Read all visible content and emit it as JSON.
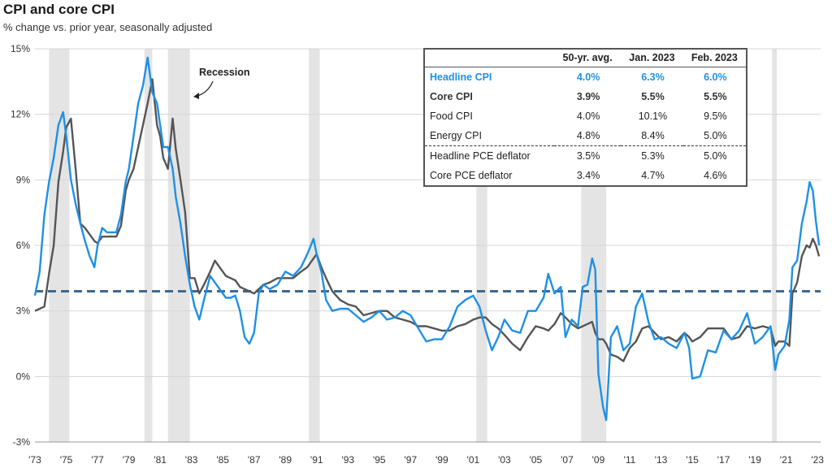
{
  "title": "CPI and core CPI",
  "subtitle": "% change vs. prior year, seasonally adjusted",
  "annotation": "Recession",
  "colors": {
    "headline": "#1e90e6",
    "core": "#555555",
    "avg_line": "#3d6a8f",
    "recession": "#e4e4e4"
  },
  "table": {
    "headers": [
      "",
      "50-yr. avg.",
      "Jan. 2023",
      "Feb. 2023"
    ],
    "rows": [
      {
        "label": "Headline CPI",
        "avg": "4.0%",
        "jan": "6.3%",
        "feb": "6.0%"
      },
      {
        "label": "Core CPI",
        "avg": "3.9%",
        "jan": "5.5%",
        "feb": "5.5%"
      },
      {
        "label": "Food CPI",
        "avg": "4.0%",
        "jan": "10.1%",
        "feb": "9.5%"
      },
      {
        "label": "Energy CPI",
        "avg": "4.8%",
        "jan": "8.4%",
        "feb": "5.0%"
      },
      {
        "label": "Headline PCE deflator",
        "avg": "3.5%",
        "jan": "5.3%",
        "feb": "5.0%"
      },
      {
        "label": "Core PCE deflator",
        "avg": "3.4%",
        "jan": "4.7%",
        "feb": "4.6%"
      }
    ]
  },
  "chart_data": {
    "type": "line",
    "title": "CPI and core CPI",
    "subtitle": "% change vs. prior year, seasonally adjusted",
    "xlabel": "",
    "ylabel": "",
    "xlim": [
      1973,
      2023.2
    ],
    "ylim": [
      -3,
      15
    ],
    "yticks": [
      "-3%",
      "0%",
      "3%",
      "6%",
      "9%",
      "12%",
      "15%"
    ],
    "xticks": [
      "'73",
      "'75",
      "'77",
      "'79",
      "'81",
      "'83",
      "'85",
      "'87",
      "'89",
      "'91",
      "'93",
      "'95",
      "'97",
      "'99",
      "'01",
      "'03",
      "'05",
      "'07",
      "'09",
      "'11",
      "'13",
      "'15",
      "'17",
      "'19",
      "'21",
      "'23"
    ],
    "grid": "horizontal",
    "reference_line": {
      "value": 3.9,
      "style": "dashed"
    },
    "recessions": [
      [
        1973.9,
        1975.2
      ],
      [
        1980.0,
        1980.5
      ],
      [
        1981.5,
        1982.9
      ],
      [
        1990.5,
        1991.2
      ],
      [
        2001.2,
        2001.9
      ],
      [
        2007.9,
        2009.5
      ],
      [
        2020.1,
        2020.4
      ]
    ],
    "series": [
      {
        "name": "Headline CPI",
        "x": [
          1973.0,
          1973.3,
          1973.6,
          1973.9,
          1974.2,
          1974.5,
          1974.8,
          1975.0,
          1975.3,
          1975.6,
          1975.9,
          1976.2,
          1976.5,
          1976.8,
          1977.0,
          1977.3,
          1977.6,
          1977.9,
          1978.2,
          1978.5,
          1978.8,
          1979.0,
          1979.3,
          1979.6,
          1979.9,
          1980.2,
          1980.5,
          1980.8,
          1981.0,
          1981.2,
          1981.5,
          1981.8,
          1982.0,
          1982.3,
          1982.6,
          1982.9,
          1983.2,
          1983.5,
          1983.8,
          1984.2,
          1984.5,
          1984.8,
          1985.2,
          1985.5,
          1985.8,
          1986.1,
          1986.4,
          1986.7,
          1987.0,
          1987.3,
          1987.6,
          1988.0,
          1988.5,
          1989.0,
          1989.5,
          1990.0,
          1990.4,
          1990.8,
          1991.0,
          1991.3,
          1991.6,
          1992.0,
          1992.5,
          1993.0,
          1993.5,
          1994.0,
          1994.5,
          1995.0,
          1995.5,
          1996.0,
          1996.5,
          1997.0,
          1997.5,
          1998.0,
          1998.5,
          1999.0,
          1999.5,
          2000.0,
          2000.5,
          2001.0,
          2001.4,
          2001.8,
          2002.2,
          2002.6,
          2003.0,
          2003.5,
          2004.0,
          2004.5,
          2005.0,
          2005.5,
          2005.8,
          2006.2,
          2006.6,
          2006.9,
          2007.3,
          2007.7,
          2008.0,
          2008.3,
          2008.6,
          2008.8,
          2009.0,
          2009.3,
          2009.5,
          2009.8,
          2010.2,
          2010.6,
          2011.0,
          2011.4,
          2011.8,
          2012.2,
          2012.6,
          2013.0,
          2013.5,
          2014.0,
          2014.5,
          2014.8,
          2015.0,
          2015.5,
          2016.0,
          2016.5,
          2017.0,
          2017.5,
          2018.0,
          2018.5,
          2019.0,
          2019.5,
          2020.0,
          2020.3,
          2020.5,
          2020.9,
          2021.2,
          2021.4,
          2021.7,
          2022.0,
          2022.3,
          2022.5,
          2022.7,
          2022.9,
          2023.1
        ],
        "values": [
          3.7,
          4.8,
          7.4,
          8.9,
          10.0,
          11.5,
          12.1,
          11.0,
          9.0,
          7.9,
          7.0,
          6.2,
          5.5,
          5.0,
          6.0,
          6.8,
          6.6,
          6.6,
          6.6,
          7.4,
          8.9,
          9.5,
          11.0,
          12.5,
          13.3,
          14.6,
          13.0,
          12.5,
          11.5,
          10.5,
          10.5,
          9.5,
          8.2,
          7.0,
          5.5,
          4.2,
          3.2,
          2.6,
          3.5,
          4.6,
          4.3,
          4.0,
          3.6,
          3.6,
          3.7,
          3.0,
          1.8,
          1.5,
          2.0,
          3.8,
          4.2,
          4.0,
          4.2,
          4.8,
          4.6,
          5.0,
          5.6,
          6.3,
          5.6,
          4.8,
          3.5,
          3.0,
          3.1,
          3.1,
          2.8,
          2.5,
          2.7,
          3.0,
          2.6,
          2.7,
          3.0,
          2.8,
          2.2,
          1.6,
          1.7,
          1.7,
          2.3,
          3.2,
          3.5,
          3.7,
          3.2,
          2.1,
          1.2,
          1.8,
          2.6,
          2.1,
          2.0,
          3.0,
          3.0,
          3.6,
          4.7,
          3.8,
          4.1,
          1.8,
          2.6,
          2.3,
          4.1,
          4.2,
          5.4,
          4.9,
          0.1,
          -1.4,
          -2.0,
          1.8,
          2.3,
          1.2,
          1.5,
          3.2,
          3.8,
          2.5,
          1.7,
          1.8,
          1.5,
          1.3,
          2.0,
          1.3,
          -0.1,
          0.0,
          1.2,
          1.1,
          2.1,
          1.7,
          2.1,
          2.9,
          1.5,
          1.8,
          2.3,
          0.3,
          1.0,
          1.4,
          2.6,
          5.0,
          5.3,
          7.0,
          8.0,
          8.9,
          8.5,
          7.1,
          6.0
        ]
      },
      {
        "name": "Core CPI",
        "x": [
          1973.0,
          1973.3,
          1973.6,
          1973.9,
          1974.2,
          1974.5,
          1974.8,
          1975.0,
          1975.3,
          1975.6,
          1975.9,
          1976.2,
          1976.5,
          1976.8,
          1977.0,
          1977.3,
          1977.6,
          1977.9,
          1978.2,
          1978.5,
          1978.8,
          1979.0,
          1979.3,
          1979.6,
          1979.9,
          1980.2,
          1980.5,
          1980.8,
          1981.0,
          1981.2,
          1981.5,
          1981.8,
          1982.0,
          1982.3,
          1982.6,
          1982.9,
          1983.2,
          1983.5,
          1983.8,
          1984.2,
          1984.5,
          1984.8,
          1985.2,
          1985.5,
          1985.8,
          1986.1,
          1986.4,
          1986.7,
          1987.0,
          1987.3,
          1987.6,
          1988.0,
          1988.5,
          1989.0,
          1989.5,
          1990.0,
          1990.4,
          1990.8,
          1991.0,
          1991.3,
          1991.6,
          1992.0,
          1992.5,
          1993.0,
          1993.5,
          1994.0,
          1994.5,
          1995.0,
          1995.5,
          1996.0,
          1996.5,
          1997.0,
          1997.5,
          1998.0,
          1998.5,
          1999.0,
          1999.5,
          2000.0,
          2000.5,
          2001.0,
          2001.4,
          2001.8,
          2002.2,
          2002.6,
          2003.0,
          2003.5,
          2004.0,
          2004.5,
          2005.0,
          2005.5,
          2005.8,
          2006.2,
          2006.6,
          2006.9,
          2007.3,
          2007.7,
          2008.0,
          2008.3,
          2008.6,
          2008.8,
          2009.0,
          2009.3,
          2009.5,
          2009.8,
          2010.2,
          2010.6,
          2011.0,
          2011.4,
          2011.8,
          2012.2,
          2012.6,
          2013.0,
          2013.5,
          2014.0,
          2014.5,
          2014.8,
          2015.0,
          2015.5,
          2016.0,
          2016.5,
          2017.0,
          2017.5,
          2018.0,
          2018.5,
          2019.0,
          2019.5,
          2020.0,
          2020.3,
          2020.5,
          2020.9,
          2021.2,
          2021.4,
          2021.7,
          2022.0,
          2022.3,
          2022.5,
          2022.7,
          2022.9,
          2023.1
        ],
        "values": [
          3.0,
          3.1,
          3.2,
          4.7,
          6.0,
          8.9,
          10.3,
          11.4,
          11.8,
          9.5,
          7.0,
          6.8,
          6.5,
          6.2,
          6.1,
          6.4,
          6.4,
          6.4,
          6.4,
          6.9,
          8.5,
          9.0,
          9.5,
          10.5,
          11.5,
          12.5,
          13.6,
          11.5,
          11.0,
          10.0,
          9.5,
          11.8,
          10.4,
          9.0,
          7.5,
          4.5,
          4.5,
          3.8,
          4.2,
          4.8,
          5.3,
          5.0,
          4.6,
          4.5,
          4.4,
          4.1,
          4.0,
          3.9,
          3.8,
          4.0,
          4.2,
          4.3,
          4.5,
          4.5,
          4.5,
          4.8,
          5.0,
          5.4,
          5.6,
          5.0,
          4.5,
          3.9,
          3.5,
          3.3,
          3.2,
          2.8,
          2.9,
          3.0,
          3.0,
          2.7,
          2.6,
          2.5,
          2.3,
          2.3,
          2.2,
          2.1,
          2.1,
          2.3,
          2.4,
          2.6,
          2.7,
          2.7,
          2.4,
          2.2,
          1.9,
          1.5,
          1.2,
          1.8,
          2.3,
          2.2,
          2.1,
          2.4,
          2.9,
          2.7,
          2.4,
          2.2,
          2.3,
          2.4,
          2.5,
          2.0,
          1.7,
          1.7,
          1.5,
          1.0,
          0.9,
          0.7,
          1.3,
          1.6,
          2.2,
          2.3,
          2.0,
          1.7,
          1.8,
          1.6,
          2.0,
          1.8,
          1.6,
          1.8,
          2.2,
          2.2,
          2.2,
          1.7,
          1.8,
          2.3,
          2.2,
          2.3,
          2.2,
          1.4,
          1.6,
          1.6,
          1.4,
          3.8,
          4.3,
          5.5,
          6.0,
          5.9,
          6.3,
          6.0,
          5.5
        ]
      }
    ]
  }
}
